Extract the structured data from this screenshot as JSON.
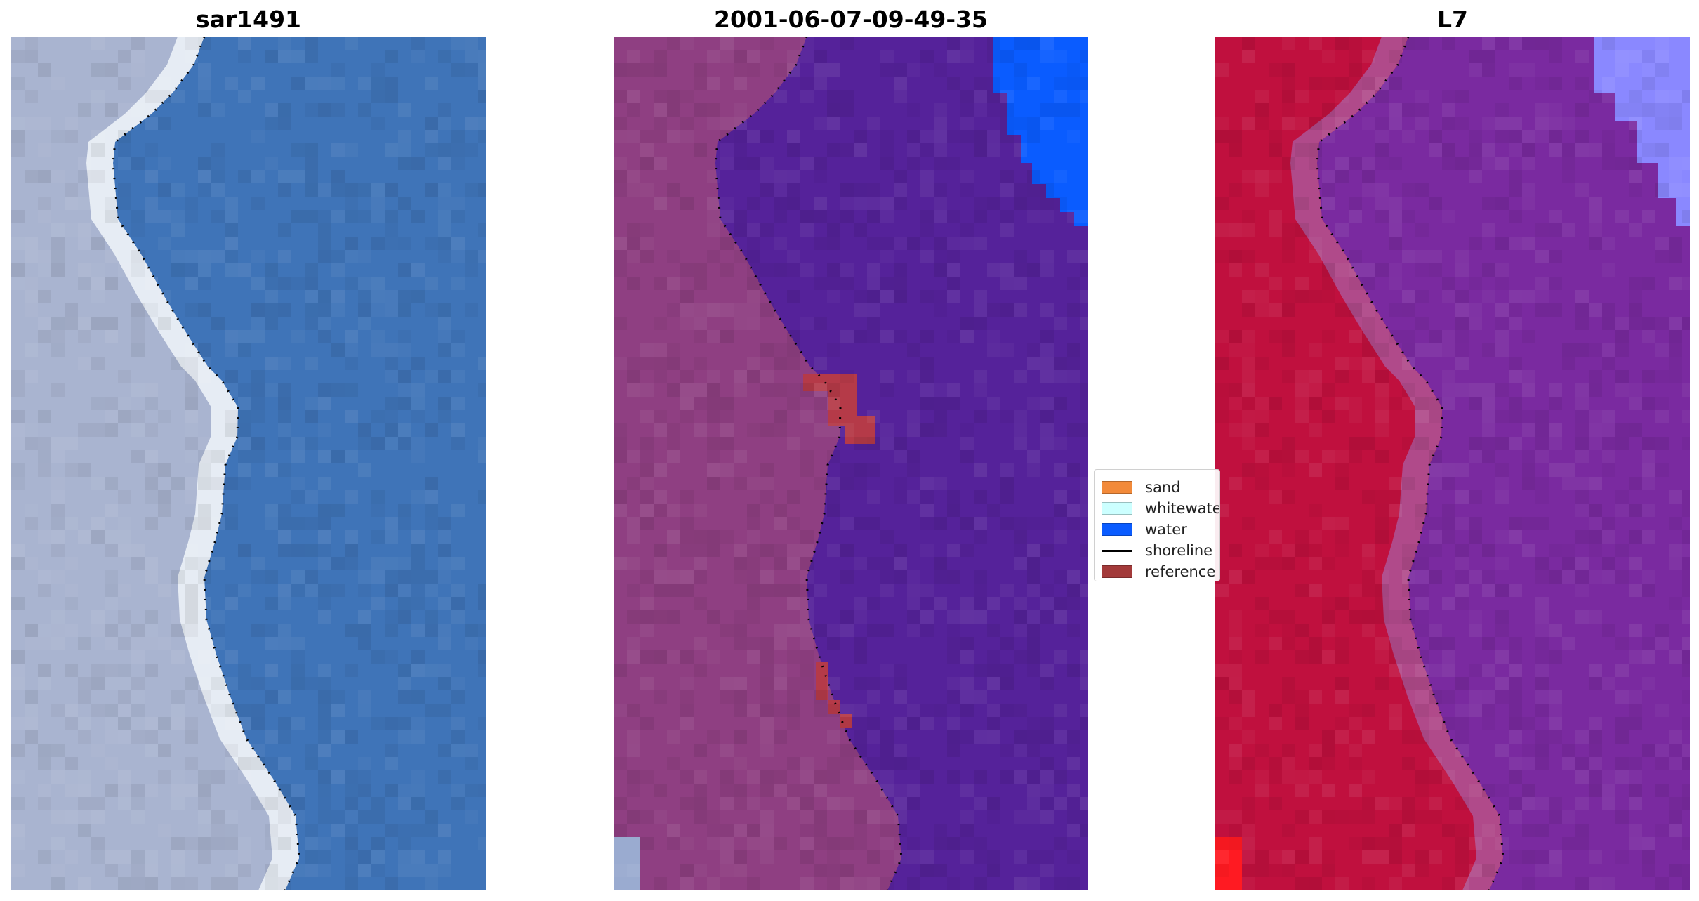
{
  "panels": [
    {
      "title": "sar1491",
      "style": "rgb"
    },
    {
      "title": "2001-06-07-09-49-35",
      "style": "classified"
    },
    {
      "title": "L7",
      "style": "falsecolor"
    }
  ],
  "legend": {
    "items": [
      {
        "label": "sand",
        "color": "#f28a3a",
        "kind": "patch"
      },
      {
        "label": "whitewater",
        "color": "#ccffff",
        "kind": "patch"
      },
      {
        "label": "water",
        "color": "#0a5cff",
        "kind": "patch"
      },
      {
        "label": "shoreline",
        "color": "#000000",
        "kind": "line"
      },
      {
        "label": "reference",
        "color": "#a33a3a",
        "kind": "patch"
      }
    ]
  },
  "colors": {
    "rgb_land": "#a9b4d0",
    "rgb_surf": "#e6ecf4",
    "rgb_water": "#3f74b8",
    "class_land": "#8f3f82",
    "class_sea": "#55229a",
    "class_water": "#0a5cff",
    "class_reference": "#b53a48",
    "fc_land": "#c0103e",
    "fc_sea": "#7a2aa0",
    "fc_corner": "#8a88ff",
    "shoreline": "#000000"
  }
}
